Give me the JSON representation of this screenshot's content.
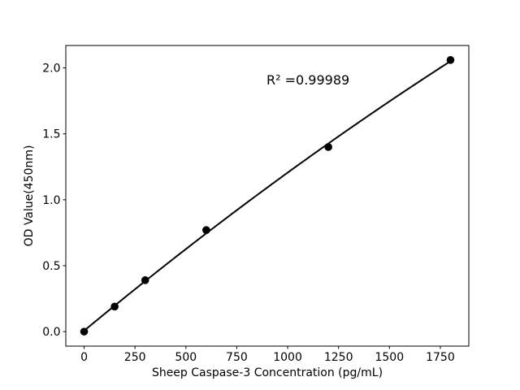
{
  "chart_data": {
    "type": "scatter",
    "title": "",
    "xlabel": "Sheep Caspase-3 Concentration (pg/mL)",
    "ylabel": "OD Value(450nm)",
    "x": [
      0,
      150,
      300,
      600,
      1200,
      1800
    ],
    "y": [
      0.0,
      0.19,
      0.39,
      0.77,
      1.4,
      2.06
    ],
    "fit": {
      "type": "quadratic",
      "annotation": "R² =0.99989",
      "r_squared": 0.99989
    },
    "xticks": [
      0,
      250,
      500,
      750,
      1000,
      1250,
      1500,
      1750
    ],
    "yticks": [
      0.0,
      0.5,
      1.0,
      1.5,
      2.0
    ],
    "xlim": [
      -90,
      1890
    ],
    "ylim": [
      -0.11,
      2.17
    ],
    "grid": false,
    "legend_position": "none",
    "colors": {
      "line": "#000000",
      "marker": "#000000",
      "text": "#000000",
      "spine": "#000000",
      "background": "#ffffff"
    }
  }
}
